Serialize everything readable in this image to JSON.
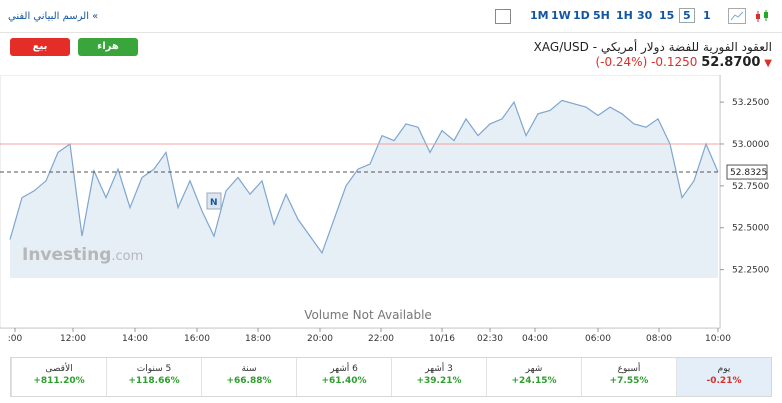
{
  "toolbar": {
    "link": "الرسم البياني الفني «",
    "timeframes": [
      "1M",
      "1W",
      "1D",
      "5H",
      "1H",
      "30",
      "15",
      "5",
      "1"
    ],
    "selected": "5"
  },
  "buttons": {
    "sell": "بيع",
    "buy": "هراء"
  },
  "header": {
    "title": "XAG/USD - العقود الفورية للفضة دولار أمريكي",
    "price": "52.8700",
    "change": "-0.1250",
    "change_pct": "(-0.24%)"
  },
  "chart": {
    "type": "line",
    "color": "#7ea6cf",
    "fill": "#e6eef6",
    "values": [
      52.43,
      52.68,
      52.72,
      52.78,
      52.95,
      53.0,
      52.45,
      52.84,
      52.68,
      52.85,
      52.62,
      52.8,
      52.85,
      52.95,
      52.62,
      52.78,
      52.6,
      52.45,
      52.72,
      52.8,
      52.7,
      52.78,
      52.52,
      52.7,
      52.55,
      52.45,
      52.35,
      52.55,
      52.75,
      52.85,
      52.88,
      53.05,
      53.02,
      53.12,
      53.1,
      52.95,
      53.08,
      53.02,
      53.15,
      53.05,
      53.12,
      53.15,
      53.25,
      53.05,
      53.18,
      53.2,
      53.26,
      53.24,
      53.22,
      53.17,
      53.22,
      53.18,
      53.12,
      53.1,
      53.15,
      53.0,
      52.68,
      52.78,
      53.0,
      52.8325
    ],
    "ylim": [
      52.2,
      53.37
    ],
    "yticks": [
      {
        "value": 52.25,
        "label": "52.2500"
      },
      {
        "value": 52.5,
        "label": "52.5000"
      },
      {
        "value": 52.75,
        "label": "52.7500"
      },
      {
        "value": 53.0,
        "label": "53.0000"
      },
      {
        "value": 53.25,
        "label": "53.2500"
      }
    ],
    "xticks": [
      ":00",
      "12:00",
      "14:00",
      "16:00",
      "18:00",
      "20:00",
      "22:00",
      "10/16",
      "02:30",
      "04:00",
      "06:00",
      "08:00",
      "10:00"
    ],
    "reference_line": 53.0,
    "last_value": 52.8325,
    "marker": "N",
    "watermark": "Investing",
    "watermark_suffix": ".com",
    "volume_note": "Volume Not Available"
  },
  "stats": [
    {
      "label": "يوم",
      "value": "-0.21%"
    },
    {
      "label": "أسبوع",
      "value": "+7.55%"
    },
    {
      "label": "شهر",
      "value": "+24.15%"
    },
    {
      "label": "3 أشهر",
      "value": "+39.21%"
    },
    {
      "label": "6 أشهر",
      "value": "+61.40%"
    },
    {
      "label": "سنة",
      "value": "+66.88%"
    },
    {
      "label": "5 سنوات",
      "value": "+118.66%"
    },
    {
      "label": "الأقصى",
      "value": "+811.20%"
    }
  ]
}
